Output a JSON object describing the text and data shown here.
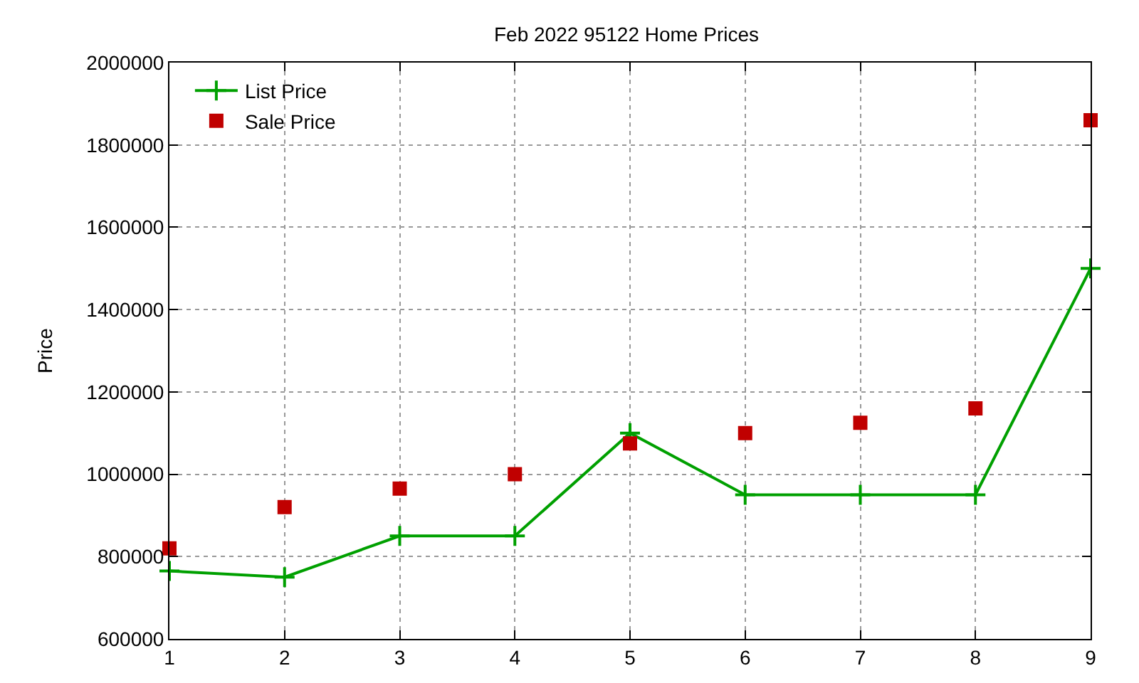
{
  "chart_data": {
    "type": "line",
    "title": "Feb 2022 95122 Home Prices",
    "ylabel": "Price",
    "x": [
      1,
      2,
      3,
      4,
      5,
      6,
      7,
      8,
      9
    ],
    "series": [
      {
        "name": "List Price",
        "color": "#00a000",
        "marker": "cross",
        "values": [
          765000,
          750000,
          850000,
          850000,
          1100000,
          950000,
          950000,
          950000,
          1500000
        ]
      },
      {
        "name": "Sale Price",
        "type": "scatter",
        "color": "#c00000",
        "marker": "square",
        "values": [
          820000,
          920000,
          965000,
          1000000,
          1075000,
          1100000,
          1125000,
          1160000,
          1860000
        ]
      }
    ],
    "xlim": [
      1,
      9
    ],
    "xticks": [
      1,
      2,
      3,
      4,
      5,
      6,
      7,
      8,
      9
    ],
    "ylim": [
      600000,
      2000000
    ],
    "yticks": [
      600000,
      800000,
      1000000,
      1200000,
      1400000,
      1600000,
      1800000,
      2000000
    ],
    "grid": true,
    "legend": "top left"
  }
}
